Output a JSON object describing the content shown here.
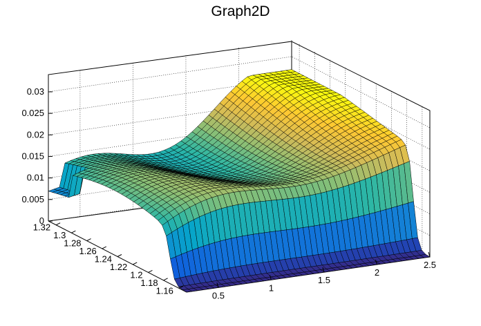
{
  "chart_data": {
    "type": "surface",
    "title": "Graph2D",
    "x_range": [
      0.2,
      2.5
    ],
    "y_range": [
      1.15,
      1.33
    ],
    "z_range": [
      0,
      0.034
    ],
    "x_ticks": [
      "0.5",
      "1",
      "1.5",
      "2",
      "2.5"
    ],
    "y_ticks": [
      "1.16",
      "1.18",
      "1.2",
      "1.22",
      "1.24",
      "1.26",
      "1.28",
      "1.3",
      "1.32"
    ],
    "z_ticks": [
      "0",
      "0.005",
      "0.01",
      "0.015",
      "0.02",
      "0.025",
      "0.03"
    ],
    "grid": true,
    "colormap": [
      "#352a87",
      "#0f5cdd",
      "#1481d6",
      "#06a4ca",
      "#2eb7a4",
      "#87bf77",
      "#d1bb59",
      "#fec832",
      "#f9fb0e"
    ],
    "surface_summary": {
      "max_z": 0.027,
      "z_at_y_edge_low": 0.0
    }
  }
}
